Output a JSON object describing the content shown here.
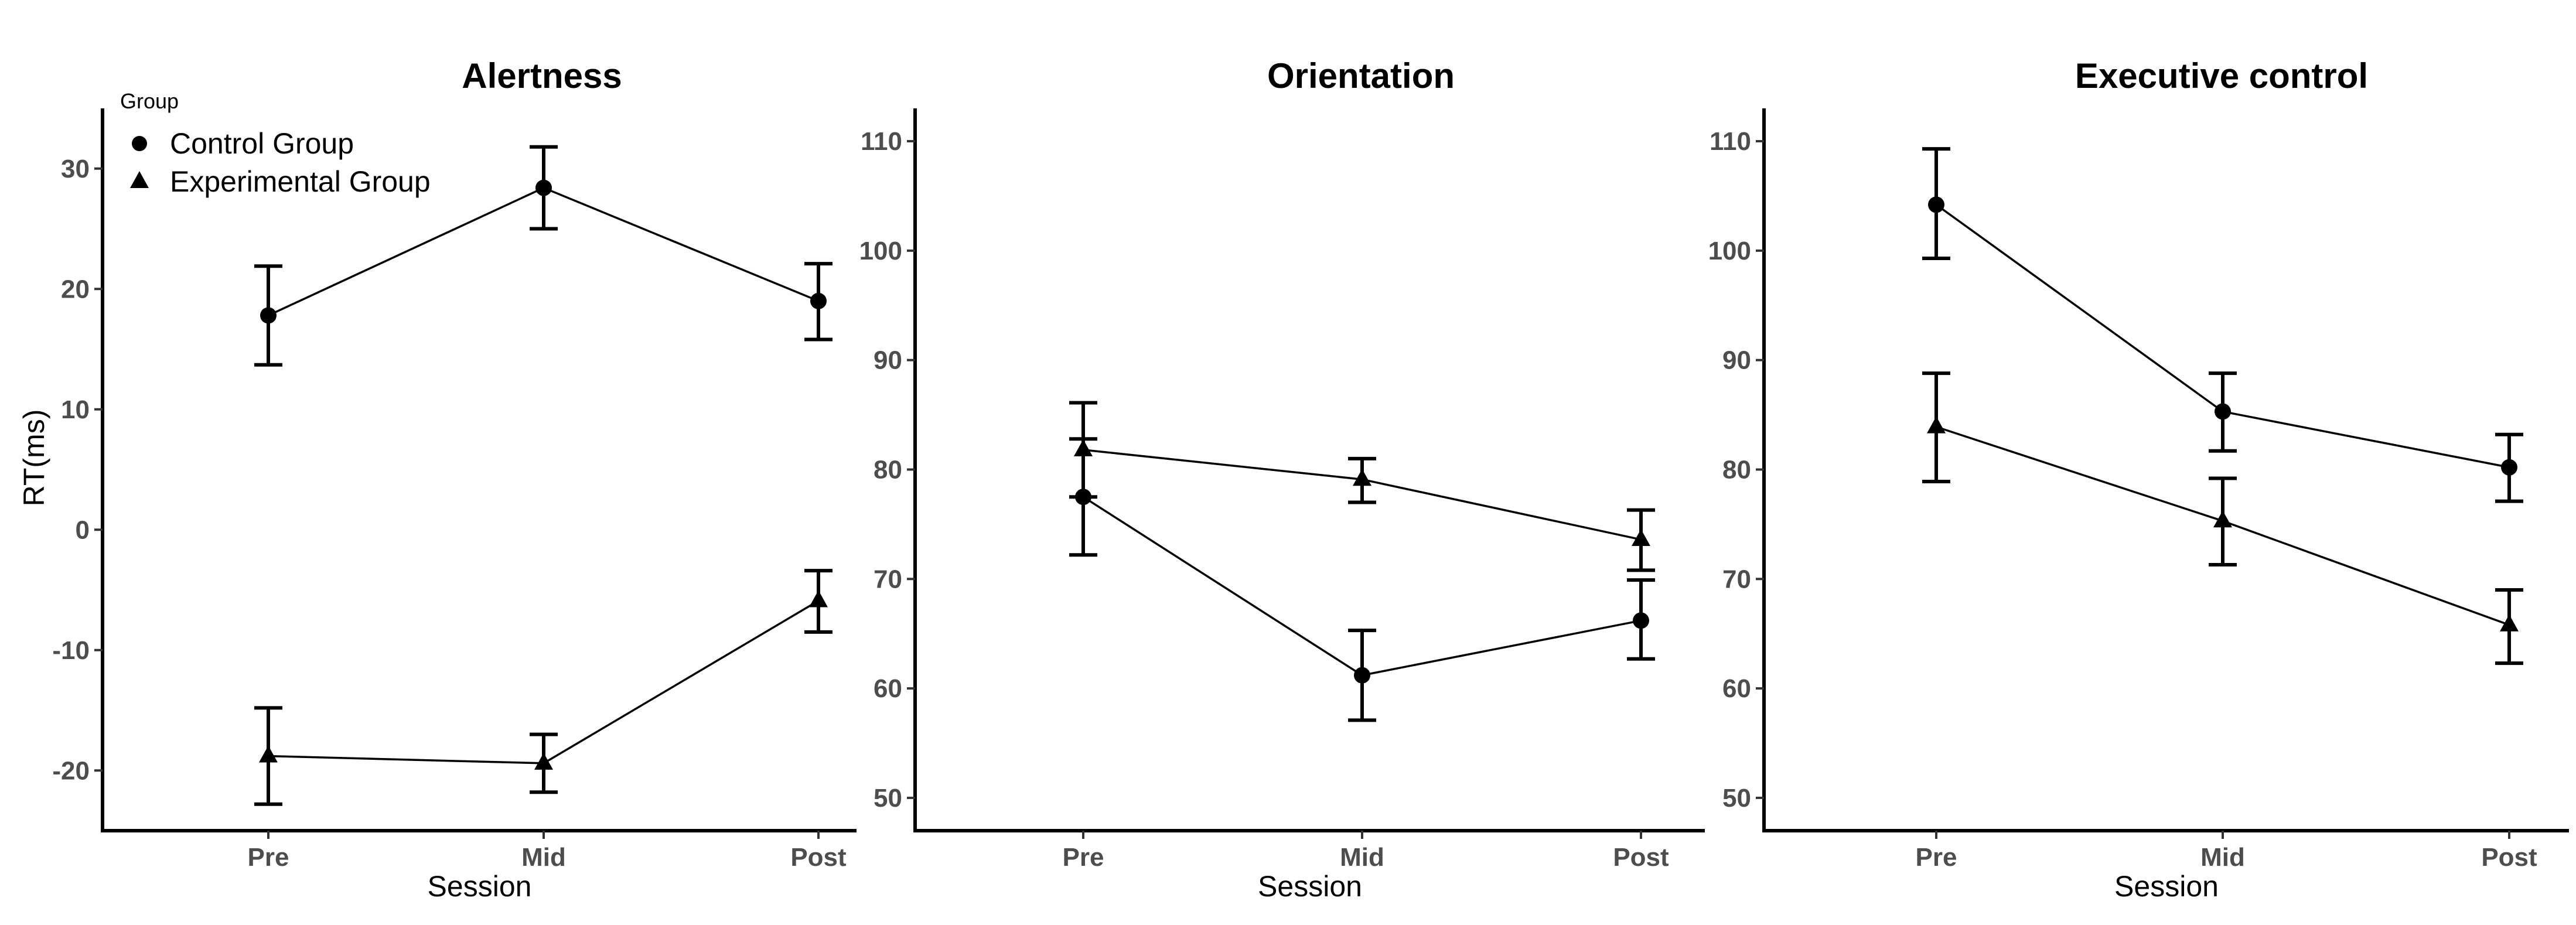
{
  "chart_data": [
    {
      "type": "line",
      "title": "Alertness",
      "xlabel": "Session",
      "ylabel": "RT(ms)",
      "categories": [
        "Pre",
        "Mid",
        "Post"
      ],
      "ylim": [
        -25,
        35
      ],
      "yticks": [
        -20,
        -10,
        0,
        10,
        20,
        30
      ],
      "ytick_labels": [
        "-20",
        "-10",
        "0",
        "10",
        "20",
        "30"
      ],
      "legend": {
        "title": "Group",
        "position": "top-left",
        "entries": [
          {
            "label": "Control Group",
            "marker": "circle"
          },
          {
            "label": "Experimental Group",
            "marker": "triangle"
          }
        ]
      },
      "series": [
        {
          "name": "Control Group",
          "marker": "circle",
          "values": [
            17.8,
            28.4,
            19.0
          ],
          "lower": [
            13.7,
            25.0,
            15.8
          ],
          "upper": [
            21.9,
            31.8,
            22.1
          ]
        },
        {
          "name": "Experimental Group",
          "marker": "triangle",
          "values": [
            -18.8,
            -19.4,
            -5.9
          ],
          "lower": [
            -22.8,
            -21.8,
            -8.5
          ],
          "upper": [
            -14.8,
            -17.0,
            -3.4
          ]
        }
      ]
    },
    {
      "type": "line",
      "title": "Orientation",
      "xlabel": "Session",
      "ylabel": "",
      "categories": [
        "Pre",
        "Mid",
        "Post"
      ],
      "ylim": [
        47,
        113
      ],
      "yticks": [
        50,
        60,
        70,
        80,
        90,
        100,
        110
      ],
      "ytick_labels": [
        "50",
        "60",
        "70",
        "80",
        "90",
        "100",
        "110"
      ],
      "series": [
        {
          "name": "Control Group",
          "marker": "circle",
          "values": [
            77.5,
            61.2,
            66.2
          ],
          "lower": [
            72.2,
            57.1,
            62.7
          ],
          "upper": [
            82.8,
            65.3,
            69.9
          ]
        },
        {
          "name": "Experimental Group",
          "marker": "triangle",
          "values": [
            81.8,
            79.1,
            73.6
          ],
          "lower": [
            77.5,
            77.0,
            70.8
          ],
          "upper": [
            86.1,
            81.0,
            76.3
          ]
        }
      ]
    },
    {
      "type": "line",
      "title": "Executive control",
      "xlabel": "Session",
      "ylabel": "",
      "categories": [
        "Pre",
        "Mid",
        "Post"
      ],
      "ylim": [
        47,
        113
      ],
      "yticks": [
        50,
        60,
        70,
        80,
        90,
        100,
        110
      ],
      "ytick_labels": [
        "50",
        "60",
        "70",
        "80",
        "90",
        "100",
        "110"
      ],
      "series": [
        {
          "name": "Control Group",
          "marker": "circle",
          "values": [
            104.2,
            85.3,
            80.2
          ],
          "lower": [
            99.3,
            81.7,
            77.1
          ],
          "upper": [
            109.3,
            88.8,
            83.2
          ]
        },
        {
          "name": "Experimental Group",
          "marker": "triangle",
          "values": [
            83.9,
            75.3,
            65.8
          ],
          "lower": [
            78.9,
            71.3,
            62.3
          ],
          "upper": [
            88.8,
            79.2,
            69.0
          ]
        }
      ]
    }
  ]
}
